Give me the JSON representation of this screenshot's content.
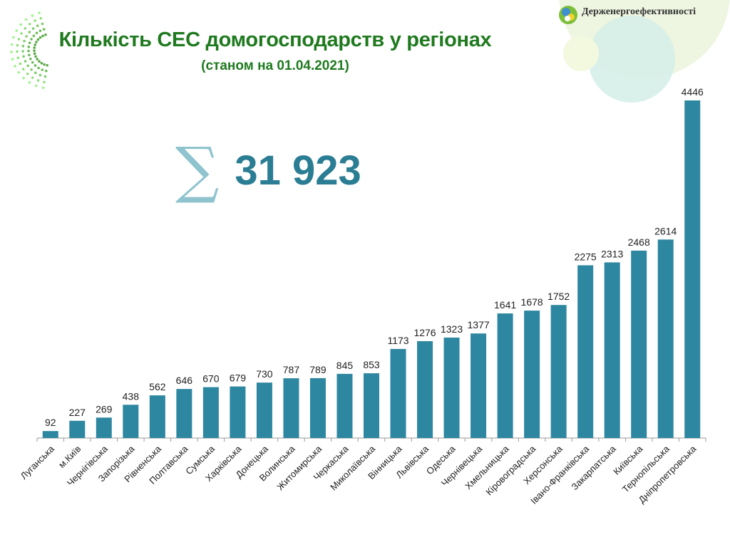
{
  "header": {
    "title": "Кількість СЕС домогосподарств у регіонах",
    "subtitle": "(станом на 01.04.2021)",
    "brand": "Держенергоефективності"
  },
  "total": {
    "symbol": "∑",
    "value": "31 923"
  },
  "colors": {
    "bar": "#2e87a0",
    "title": "#1f7a1f",
    "total": "#2a7d93"
  },
  "chart_data": {
    "type": "bar",
    "categories": [
      "Луганська",
      "м.Київ",
      "Чернігівська",
      "Запорізька",
      "Рівненська",
      "Полтавська",
      "Сумська",
      "Харківська",
      "Донецька",
      "Волинська",
      "Житомирська",
      "Черкаська",
      "Миколаївська",
      "Вінницька",
      "Львівська",
      "Одеська",
      "Чернівецька",
      "Хмельницька",
      "Кіровоградська",
      "Херсонська",
      "Івано-Франківська",
      "Закарпатська",
      "Київська",
      "Тернопільська",
      "Дніпропетровська"
    ],
    "values": [
      92,
      227,
      269,
      438,
      562,
      646,
      670,
      679,
      730,
      787,
      789,
      845,
      853,
      1173,
      1276,
      1323,
      1377,
      1641,
      1678,
      1752,
      2275,
      2313,
      2468,
      2614,
      4446
    ],
    "grid": false,
    "data_labels": true
  }
}
